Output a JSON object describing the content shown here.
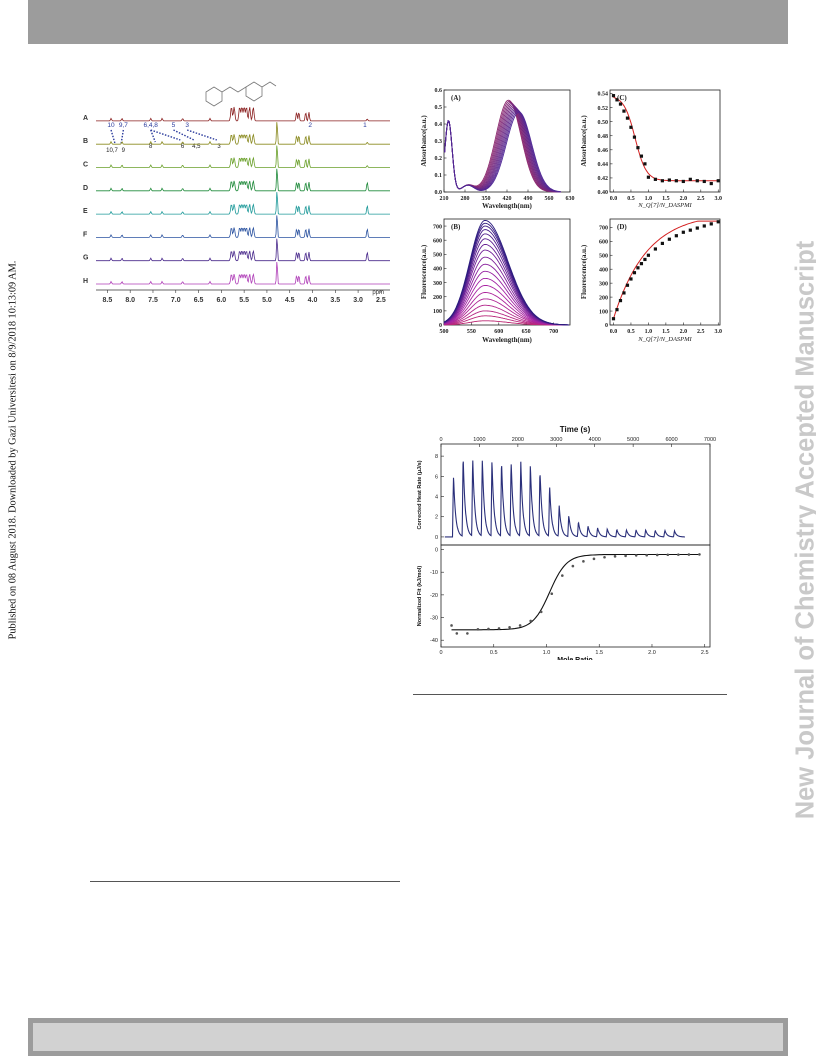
{
  "page": {
    "left_note": "Published on 08 August 2018. Downloaded by Gazi Universitesi on 8/9/2018 10:13:09 AM.",
    "right_note": "New Journal of Chemistry Accepted Manuscript"
  },
  "colors": {
    "header_bar": "#9c9c9c",
    "footer_bar": "#9c9c9c",
    "watermark": "#c9c9c9"
  },
  "chart_data": [
    {
      "id": "nmr",
      "type": "line",
      "traces": [
        {
          "label": "H",
          "color": "#b03fb8"
        },
        {
          "label": "G",
          "color": "#4a2a8c"
        },
        {
          "label": "F",
          "color": "#2a52a0"
        },
        {
          "label": "E",
          "color": "#1f9a9a"
        },
        {
          "label": "D",
          "color": "#1f8a3a"
        },
        {
          "label": "C",
          "color": "#6aa02a"
        },
        {
          "label": "B",
          "color": "#8a8a1f"
        },
        {
          "label": "A",
          "color": "#8a1f1f"
        }
      ],
      "x_ticks": [
        "8.5",
        "8.0",
        "7.5",
        "7.0",
        "6.5",
        "6.0",
        "5.5",
        "5.0",
        "4.5",
        "4.0",
        "3.5",
        "3.0",
        "2.5"
      ],
      "x_unit": "ppm",
      "xlim": [
        8.75,
        2.3
      ],
      "peak_labels_top": [
        "10",
        "9,7",
        "6,4,8",
        "5",
        "3",
        "1",
        "2"
      ],
      "peak_labels_bottom": [
        "10,7",
        "9",
        "8",
        "6",
        "4,5",
        "3"
      ]
    },
    {
      "id": "abs",
      "panel": "(A)",
      "type": "line",
      "xlabel": "Wavelength(nm)",
      "ylabel": "Absorbance(a.u.)",
      "x_ticks": [
        "210",
        "280",
        "350",
        "420",
        "490",
        "560",
        "630"
      ],
      "y_ticks": [
        "0.0",
        "0.1",
        "0.2",
        "0.3",
        "0.4",
        "0.5",
        "0.6"
      ],
      "xlim": [
        210,
        630
      ],
      "ylim": [
        0,
        0.6
      ],
      "peak_nm_range": [
        425,
        460
      ],
      "peak_abs_range": [
        0.47,
        0.54
      ]
    },
    {
      "id": "abs_titration",
      "panel": "(C)",
      "type": "scatter",
      "xlabel": "N_Q[7]/N_DASPMI",
      "ylabel": "Absorbance(a.u.)",
      "x_ticks": [
        "0.0",
        "0.5",
        "1.0",
        "1.5",
        "2.0",
        "2.5",
        "3.0"
      ],
      "y_ticks": [
        "0.40",
        "0.42",
        "0.44",
        "0.46",
        "0.48",
        "0.50",
        "0.52",
        "0.54"
      ],
      "xlim": [
        -0.1,
        3.05
      ],
      "ylim": [
        0.4,
        0.545
      ],
      "x": [
        0.0,
        0.1,
        0.2,
        0.3,
        0.4,
        0.5,
        0.6,
        0.7,
        0.8,
        0.9,
        1.0,
        1.2,
        1.4,
        1.6,
        1.8,
        2.0,
        2.2,
        2.4,
        2.6,
        2.8,
        3.0
      ],
      "y": [
        0.537,
        0.531,
        0.525,
        0.515,
        0.505,
        0.492,
        0.478,
        0.463,
        0.451,
        0.44,
        0.421,
        0.418,
        0.416,
        0.417,
        0.416,
        0.415,
        0.418,
        0.416,
        0.415,
        0.412,
        0.416
      ]
    },
    {
      "id": "fluor",
      "panel": "(B)",
      "type": "line",
      "xlabel": "Wavelength(nm)",
      "ylabel": "Fluorescence(a.u.)",
      "x_ticks": [
        "500",
        "550",
        "600",
        "650",
        "700"
      ],
      "y_ticks": [
        "0",
        "100",
        "200",
        "300",
        "400",
        "500",
        "600",
        "700"
      ],
      "xlim": [
        500,
        730
      ],
      "ylim": [
        0,
        750
      ],
      "peak_nm": 575,
      "peaks": [
        30,
        65,
        100,
        140,
        185,
        230,
        280,
        330,
        380,
        430,
        480,
        530,
        570,
        610,
        645,
        675,
        700,
        720,
        740
      ]
    },
    {
      "id": "fluor_titration",
      "panel": "(D)",
      "type": "scatter",
      "xlabel": "N_Q[7]/N_DASPMI",
      "ylabel": "Fluorescence(a.u.)",
      "x_ticks": [
        "0.0",
        "0.5",
        "1.0",
        "1.5",
        "2.0",
        "2.5",
        "3.0"
      ],
      "y_ticks": [
        "0",
        "100",
        "200",
        "300",
        "400",
        "500",
        "600",
        "700"
      ],
      "xlim": [
        -0.1,
        3.05
      ],
      "ylim": [
        0,
        760
      ],
      "x": [
        0.0,
        0.1,
        0.2,
        0.3,
        0.4,
        0.5,
        0.6,
        0.7,
        0.8,
        0.9,
        1.0,
        1.2,
        1.4,
        1.6,
        1.8,
        2.0,
        2.2,
        2.4,
        2.6,
        2.8,
        3.0
      ],
      "y": [
        45,
        110,
        175,
        230,
        285,
        330,
        375,
        410,
        440,
        470,
        500,
        545,
        585,
        615,
        640,
        665,
        680,
        695,
        710,
        725,
        740
      ]
    },
    {
      "id": "itc_raw",
      "type": "line",
      "title": "Time (s)",
      "ylabel": "Corrected Heat Rate (μJ/s)",
      "x_ticks": [
        "0",
        "1000",
        "2000",
        "3000",
        "4000",
        "5000",
        "6000",
        "7000"
      ],
      "y_ticks": [
        "0",
        "2",
        "4",
        "6",
        "8"
      ],
      "xlim": [
        0,
        7000
      ],
      "ylim": [
        -0.8,
        9.2
      ],
      "injection_times": [
        300,
        550,
        800,
        1050,
        1300,
        1550,
        1800,
        2050,
        2300,
        2550,
        2800,
        3050,
        3300,
        3550,
        3800,
        4050,
        4300,
        4550,
        4800,
        5050,
        5300,
        5550,
        5800,
        6050
      ],
      "peak_heights": [
        6.1,
        8.1,
        7.9,
        7.6,
        7.6,
        7.6,
        7.5,
        7.5,
        7.2,
        6.6,
        5.1,
        3.1,
        2.1,
        1.5,
        1.1,
        0.9,
        0.8,
        0.75,
        0.7,
        0.7,
        0.7,
        0.65,
        0.65,
        0.6
      ]
    },
    {
      "id": "itc_fit",
      "type": "scatter",
      "xlabel": "Mole Ratio",
      "ylabel": "Normalized Fit (kJ/mol)",
      "x_ticks": [
        "0",
        "0.5",
        "1.0",
        "1.5",
        "2.0",
        "2.5"
      ],
      "y_ticks": [
        "0",
        "-10",
        "-20",
        "-30",
        "-40"
      ],
      "xlim": [
        0,
        2.55
      ],
      "ylim": [
        -43,
        2
      ],
      "x": [
        0.1,
        0.15,
        0.25,
        0.35,
        0.45,
        0.55,
        0.65,
        0.75,
        0.85,
        0.95,
        1.05,
        1.15,
        1.25,
        1.35,
        1.45,
        1.55,
        1.65,
        1.75,
        1.85,
        1.95,
        2.05,
        2.15,
        2.25,
        2.35,
        2.45
      ],
      "y": [
        -33.5,
        -37.0,
        -37.0,
        -35.2,
        -35.0,
        -34.8,
        -34.3,
        -33.5,
        -31.5,
        -27.5,
        -19.5,
        -11.5,
        -7.3,
        -5.2,
        -4.1,
        -3.4,
        -3.0,
        -2.8,
        -2.6,
        -2.5,
        -2.4,
        -2.3,
        -2.25,
        -2.2,
        -2.15
      ]
    }
  ]
}
